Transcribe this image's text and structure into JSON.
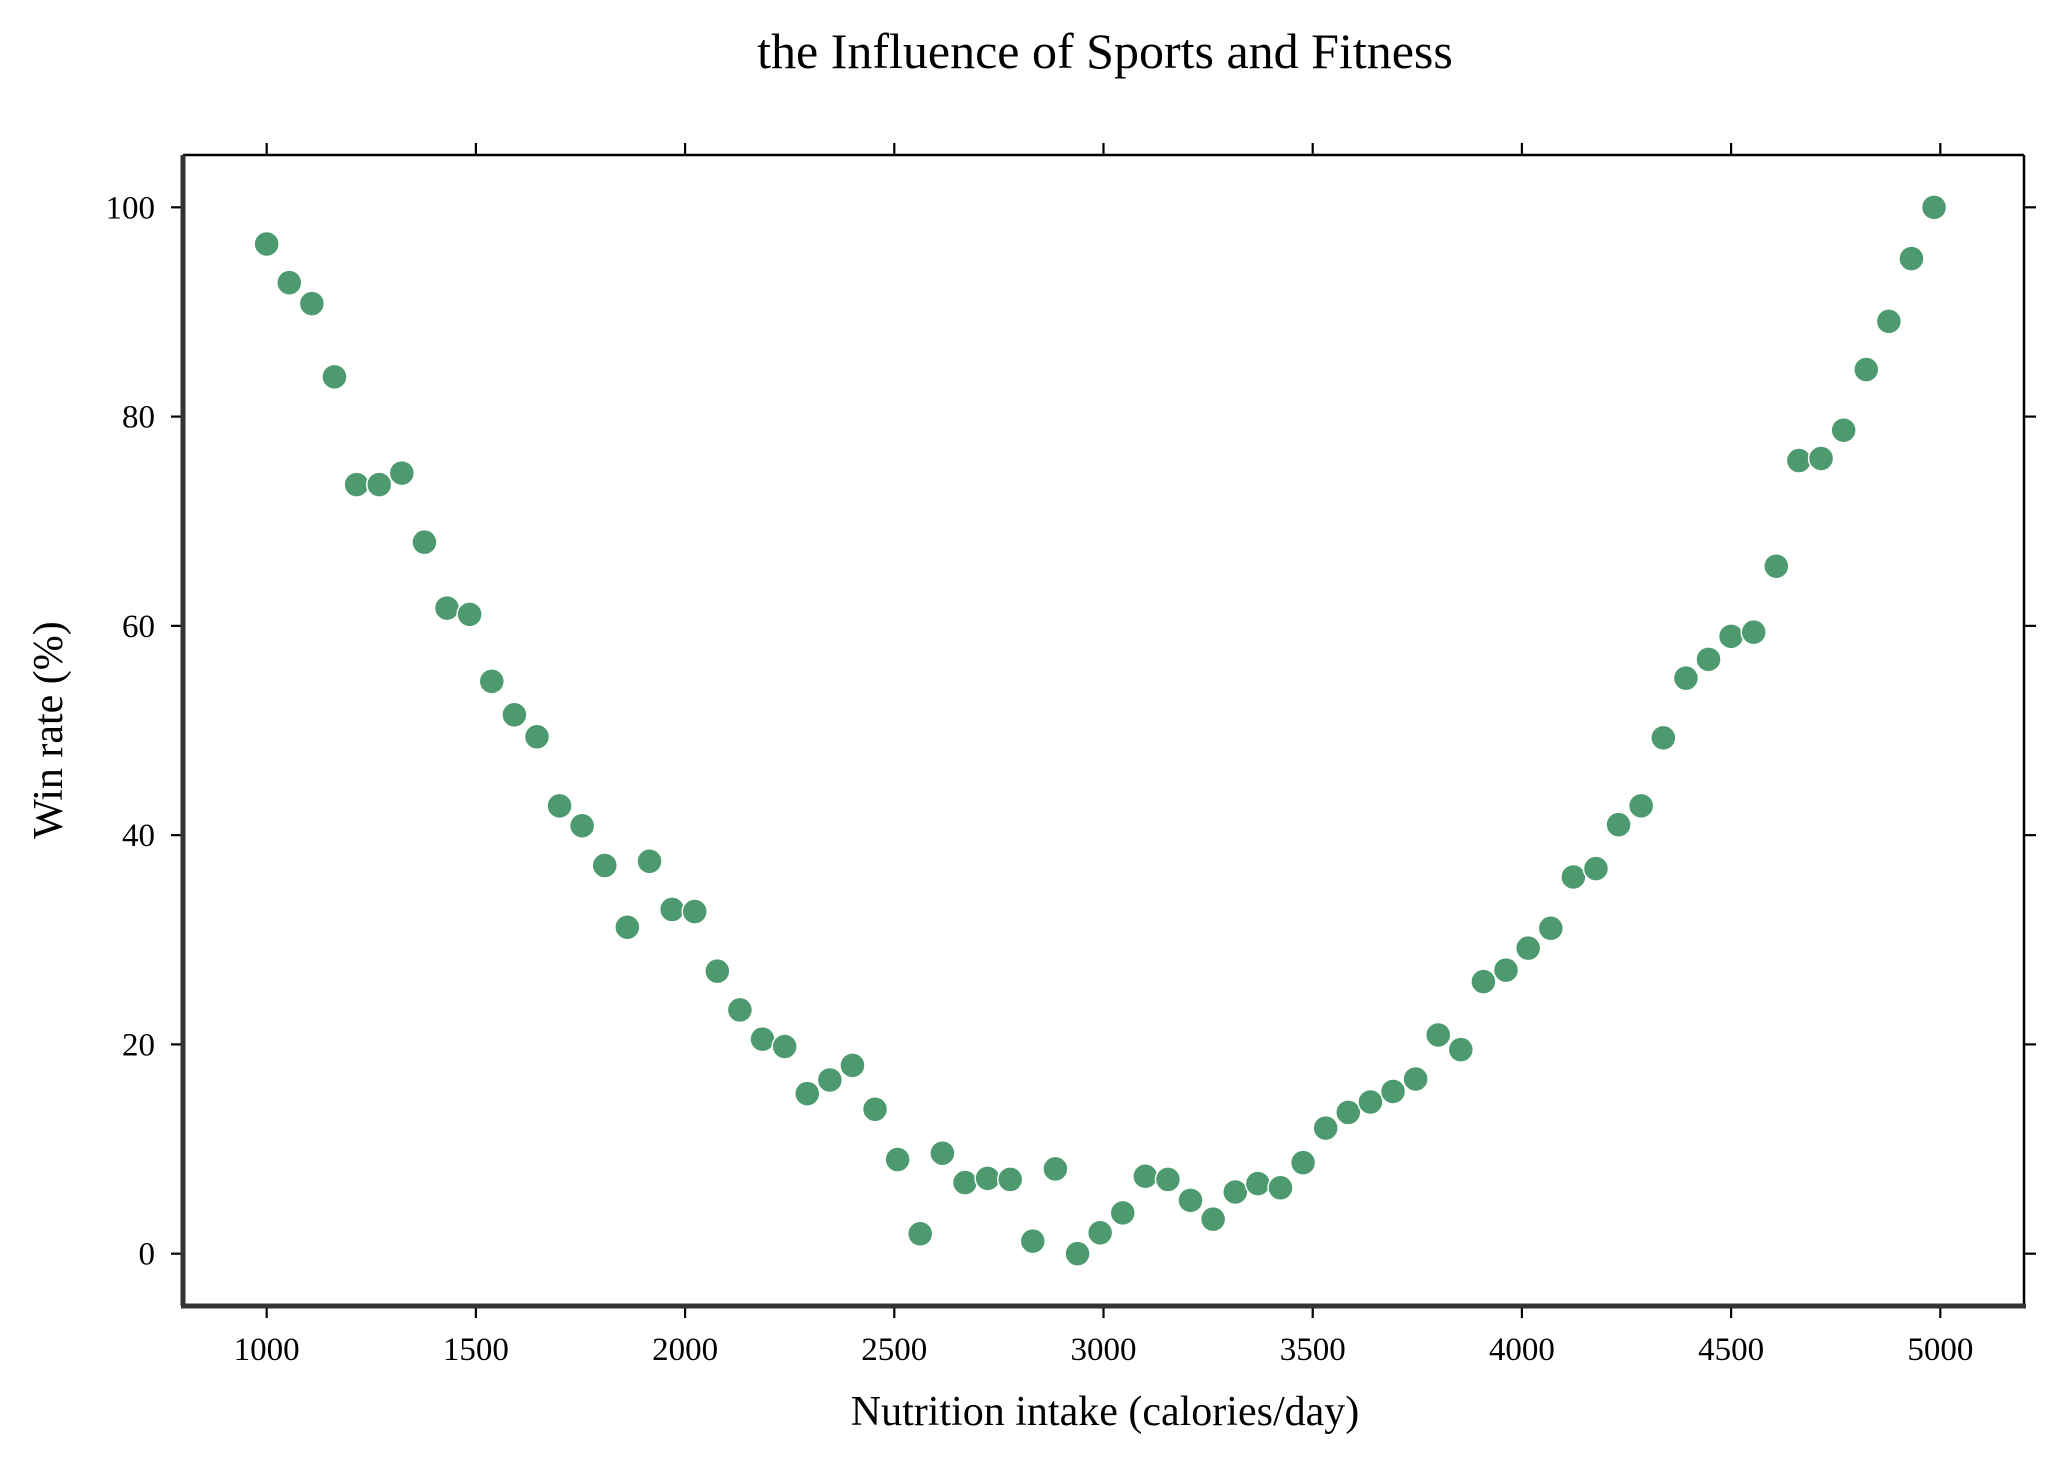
{
  "chart_data": {
    "type": "scatter",
    "title": "the Influence of Sports and Fitness",
    "xlabel": "Nutrition intake (calories/day)",
    "ylabel": "Win rate (%)",
    "xlim": [
      800,
      5200
    ],
    "ylim": [
      -5,
      105
    ],
    "xticks": [
      1000,
      1500,
      2000,
      2500,
      3000,
      3500,
      4000,
      4500,
      5000
    ],
    "yticks": [
      0,
      20,
      40,
      60,
      80,
      100
    ],
    "grid": false,
    "marker_color": "#4c9a6e",
    "series": [
      {
        "x": [
          1000,
          1054,
          1108,
          1162,
          1215,
          1269,
          1323,
          1377,
          1431,
          1485,
          1538,
          1592,
          1646,
          1700,
          1754,
          1808,
          1862,
          1915,
          1969,
          2023,
          2077,
          2131,
          2185,
          2238,
          2292,
          2346,
          2400,
          2454,
          2508,
          2562,
          2615,
          2669,
          2723,
          2777,
          2831,
          2885,
          2938,
          2992,
          3046,
          3100,
          3154,
          3208,
          3262,
          3315,
          3369,
          3423,
          3477,
          3531,
          3585,
          3638,
          3692,
          3746,
          3800,
          3854,
          3908,
          3962,
          4015,
          4069,
          4123,
          4177,
          4231,
          4285,
          4338,
          4392,
          4446,
          4500,
          4554,
          4608,
          4662,
          4715,
          4769,
          4823,
          4877,
          4931,
          4985
        ],
        "y": [
          96.5,
          92.8,
          90.8,
          83.8,
          73.5,
          73.5,
          74.6,
          68.0,
          61.7,
          61.1,
          54.7,
          51.5,
          49.4,
          42.8,
          40.9,
          37.1,
          31.2,
          37.5,
          32.9,
          32.7,
          27.0,
          23.3,
          20.5,
          19.8,
          15.3,
          16.6,
          18.0,
          13.8,
          9.0,
          1.9,
          9.6,
          6.8,
          7.2,
          7.1,
          1.2,
          8.1,
          0.0,
          2.0,
          3.9,
          7.4,
          7.1,
          5.1,
          3.3,
          5.9,
          6.7,
          6.3,
          8.7,
          12.0,
          13.5,
          14.5,
          15.5,
          16.7,
          20.9,
          19.5,
          26.0,
          27.1,
          29.2,
          31.1,
          36.0,
          36.8,
          41.0,
          42.8,
          49.3,
          55.0,
          56.8,
          59.0,
          59.4,
          65.7,
          75.8,
          76.0,
          78.7,
          84.5,
          89.1,
          95.1,
          100.0
        ]
      }
    ]
  }
}
